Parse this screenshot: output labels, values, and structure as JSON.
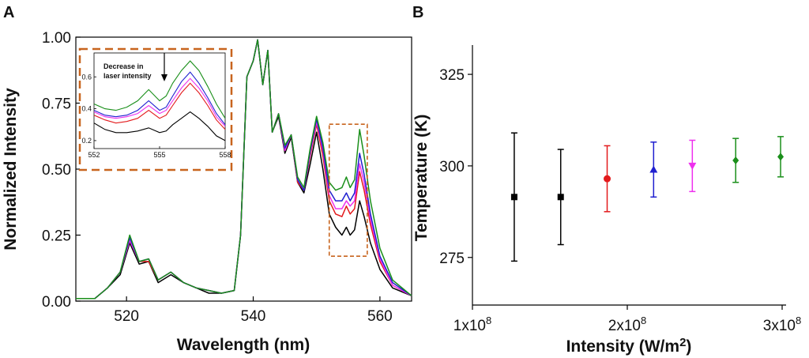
{
  "chart_data": [
    {
      "panel": "A",
      "type": "line",
      "xlabel": "Wavelength (nm)",
      "ylabel": "Normalized Intensity",
      "xlim": [
        512,
        565
      ],
      "ylim": [
        0,
        1
      ],
      "xticks": [
        "520",
        "540",
        "560"
      ],
      "yticks": [
        "0.00",
        "0.25",
        "0.50",
        "0.75",
        "1.00"
      ],
      "grid": false,
      "legend": "none",
      "series": [
        {
          "color": "#000000",
          "x": [
            512,
            515,
            517,
            519,
            520.5,
            522,
            523.5,
            525,
            527,
            529,
            531,
            533,
            535,
            537,
            538,
            539,
            540,
            540.7,
            541.5,
            542.3,
            543,
            544,
            545,
            546,
            547,
            548,
            549,
            550,
            551,
            552,
            553,
            554,
            554.7,
            555.3,
            556,
            556.8,
            557.5,
            558.5,
            560,
            562,
            565
          ],
          "y": [
            0.01,
            0.01,
            0.05,
            0.1,
            0.22,
            0.14,
            0.15,
            0.07,
            0.1,
            0.07,
            0.05,
            0.03,
            0.03,
            0.04,
            0.25,
            0.85,
            0.91,
            0.99,
            0.82,
            0.95,
            0.64,
            0.7,
            0.56,
            0.62,
            0.45,
            0.41,
            0.52,
            0.64,
            0.5,
            0.33,
            0.28,
            0.25,
            0.28,
            0.25,
            0.27,
            0.38,
            0.32,
            0.22,
            0.12,
            0.05,
            0.02
          ]
        },
        {
          "color": "#e31a1c",
          "x": [
            512,
            515,
            517,
            519,
            520.5,
            522,
            523.5,
            525,
            527,
            529,
            531,
            533,
            535,
            537,
            538,
            539,
            540,
            540.7,
            541.5,
            542.3,
            543,
            544,
            545,
            546,
            547,
            548,
            549,
            550,
            551,
            552,
            553,
            554,
            554.7,
            555.3,
            556,
            556.8,
            557.5,
            558.5,
            560,
            562,
            565
          ],
          "y": [
            0.01,
            0.01,
            0.05,
            0.11,
            0.23,
            0.15,
            0.15,
            0.08,
            0.11,
            0.07,
            0.05,
            0.04,
            0.03,
            0.04,
            0.25,
            0.85,
            0.91,
            0.99,
            0.82,
            0.95,
            0.64,
            0.71,
            0.57,
            0.63,
            0.45,
            0.42,
            0.55,
            0.67,
            0.55,
            0.38,
            0.33,
            0.32,
            0.36,
            0.33,
            0.35,
            0.49,
            0.42,
            0.29,
            0.15,
            0.06,
            0.02
          ]
        },
        {
          "color": "#ee30ee",
          "x": [
            512,
            515,
            517,
            519,
            520.5,
            522,
            523.5,
            525,
            527,
            529,
            531,
            533,
            535,
            537,
            538,
            539,
            540,
            540.7,
            541.5,
            542.3,
            543,
            544,
            545,
            546,
            547,
            548,
            549,
            550,
            551,
            552,
            553,
            554,
            554.7,
            555.3,
            556,
            556.8,
            557.5,
            558.5,
            560,
            562,
            565
          ],
          "y": [
            0.01,
            0.01,
            0.05,
            0.11,
            0.23,
            0.15,
            0.16,
            0.08,
            0.11,
            0.07,
            0.05,
            0.04,
            0.03,
            0.04,
            0.25,
            0.85,
            0.91,
            0.99,
            0.82,
            0.95,
            0.64,
            0.71,
            0.57,
            0.63,
            0.46,
            0.42,
            0.56,
            0.68,
            0.57,
            0.4,
            0.35,
            0.35,
            0.38,
            0.36,
            0.38,
            0.52,
            0.45,
            0.31,
            0.16,
            0.06,
            0.02
          ]
        },
        {
          "color": "#1f1fd0",
          "x": [
            512,
            515,
            517,
            519,
            520.5,
            522,
            523.5,
            525,
            527,
            529,
            531,
            533,
            535,
            537,
            538,
            539,
            540,
            540.7,
            541.5,
            542.3,
            543,
            544,
            545,
            546,
            547,
            548,
            549,
            550,
            551,
            552,
            553,
            554,
            554.7,
            555.3,
            556,
            556.8,
            557.5,
            558.5,
            560,
            562,
            565
          ],
          "y": [
            0.01,
            0.01,
            0.05,
            0.11,
            0.24,
            0.15,
            0.16,
            0.08,
            0.11,
            0.07,
            0.05,
            0.04,
            0.03,
            0.04,
            0.25,
            0.85,
            0.91,
            0.99,
            0.82,
            0.95,
            0.64,
            0.71,
            0.58,
            0.63,
            0.46,
            0.42,
            0.57,
            0.69,
            0.58,
            0.42,
            0.38,
            0.38,
            0.41,
            0.38,
            0.41,
            0.56,
            0.48,
            0.33,
            0.17,
            0.07,
            0.02
          ]
        },
        {
          "color": "#1a8f1a",
          "x": [
            512,
            515,
            517,
            519,
            520.5,
            522,
            523.5,
            525,
            527,
            529,
            531,
            533,
            535,
            537,
            538,
            539,
            540,
            540.7,
            541.5,
            542.3,
            543,
            544,
            545,
            546,
            547,
            548,
            549,
            550,
            551,
            552,
            553,
            554,
            554.7,
            555.3,
            556,
            556.8,
            557.5,
            558.5,
            560,
            562,
            565
          ],
          "y": [
            0.01,
            0.01,
            0.05,
            0.11,
            0.25,
            0.15,
            0.16,
            0.08,
            0.11,
            0.07,
            0.05,
            0.04,
            0.03,
            0.04,
            0.25,
            0.85,
            0.91,
            0.99,
            0.82,
            0.95,
            0.64,
            0.71,
            0.59,
            0.63,
            0.47,
            0.43,
            0.58,
            0.7,
            0.6,
            0.45,
            0.42,
            0.43,
            0.47,
            0.43,
            0.46,
            0.65,
            0.55,
            0.38,
            0.2,
            0.08,
            0.02
          ]
        }
      ],
      "inset": {
        "annotation": [
          "Decrease in",
          "laser intensity"
        ],
        "xlim": [
          552,
          558
        ],
        "ylim": [
          0.15,
          0.75
        ],
        "xticks": [
          "552",
          "555",
          "558"
        ],
        "yticks": [
          "0.2",
          "0.4",
          "0.6"
        ],
        "x": [
          552,
          552.5,
          553,
          553.5,
          554,
          554.5,
          555,
          555.3,
          555.6,
          556,
          556.4,
          556.8,
          557.2,
          557.6,
          558
        ],
        "series": [
          {
            "color": "#000000",
            "y": [
              0.31,
              0.27,
              0.25,
              0.25,
              0.26,
              0.28,
              0.25,
              0.26,
              0.3,
              0.34,
              0.38,
              0.34,
              0.29,
              0.23,
              0.2
            ]
          },
          {
            "color": "#e31a1c",
            "y": [
              0.36,
              0.33,
              0.31,
              0.32,
              0.34,
              0.39,
              0.34,
              0.36,
              0.42,
              0.5,
              0.56,
              0.5,
              0.42,
              0.33,
              0.27
            ]
          },
          {
            "color": "#ee30ee",
            "y": [
              0.38,
              0.35,
              0.34,
              0.35,
              0.37,
              0.42,
              0.37,
              0.39,
              0.45,
              0.53,
              0.59,
              0.53,
              0.45,
              0.35,
              0.29
            ]
          },
          {
            "color": "#1f1fd0",
            "y": [
              0.39,
              0.36,
              0.35,
              0.36,
              0.39,
              0.45,
              0.39,
              0.41,
              0.48,
              0.57,
              0.63,
              0.56,
              0.47,
              0.37,
              0.3
            ]
          },
          {
            "color": "#1a8f1a",
            "y": [
              0.43,
              0.4,
              0.39,
              0.41,
              0.45,
              0.52,
              0.45,
              0.48,
              0.56,
              0.64,
              0.7,
              0.64,
              0.54,
              0.43,
              0.34
            ]
          }
        ]
      }
    },
    {
      "panel": "B",
      "type": "scatter",
      "xlabel": "Intensity (W/m",
      "xlabel_sup": "2",
      "xlabel_close": ")",
      "ylabel": "Temperature (K)",
      "xlim": [
        1,
        3
      ],
      "ylim": [
        262,
        333
      ],
      "xticks": [
        {
          "mant": "1x10",
          "exp": "8",
          "value": 1
        },
        {
          "mant": "2x10",
          "exp": "8",
          "value": 2
        },
        {
          "mant": "3x10",
          "exp": "8",
          "value": 3
        }
      ],
      "yticks": [
        "275",
        "300",
        "325"
      ],
      "grid": false,
      "legend": "none",
      "points": [
        {
          "x": 1.27,
          "y": 291.5,
          "err": 17.5,
          "marker": "square",
          "color": "#000000"
        },
        {
          "x": 1.57,
          "y": 291.5,
          "err": 13,
          "marker": "square",
          "color": "#000000"
        },
        {
          "x": 1.87,
          "y": 296.5,
          "err": 9,
          "marker": "circle",
          "color": "#e31a1c"
        },
        {
          "x": 2.17,
          "y": 299,
          "err": 7.5,
          "marker": "triangle-up",
          "color": "#1f1fd0"
        },
        {
          "x": 2.42,
          "y": 300,
          "err": 7,
          "marker": "triangle-down",
          "color": "#ee30ee"
        },
        {
          "x": 2.7,
          "y": 301.5,
          "err": 6,
          "marker": "diamond",
          "color": "#1a8f1a"
        },
        {
          "x": 2.99,
          "y": 302.5,
          "err": 5.5,
          "marker": "diamond",
          "color": "#1a8f1a"
        }
      ]
    }
  ],
  "colors": {
    "inset_box": "#c8641e"
  }
}
